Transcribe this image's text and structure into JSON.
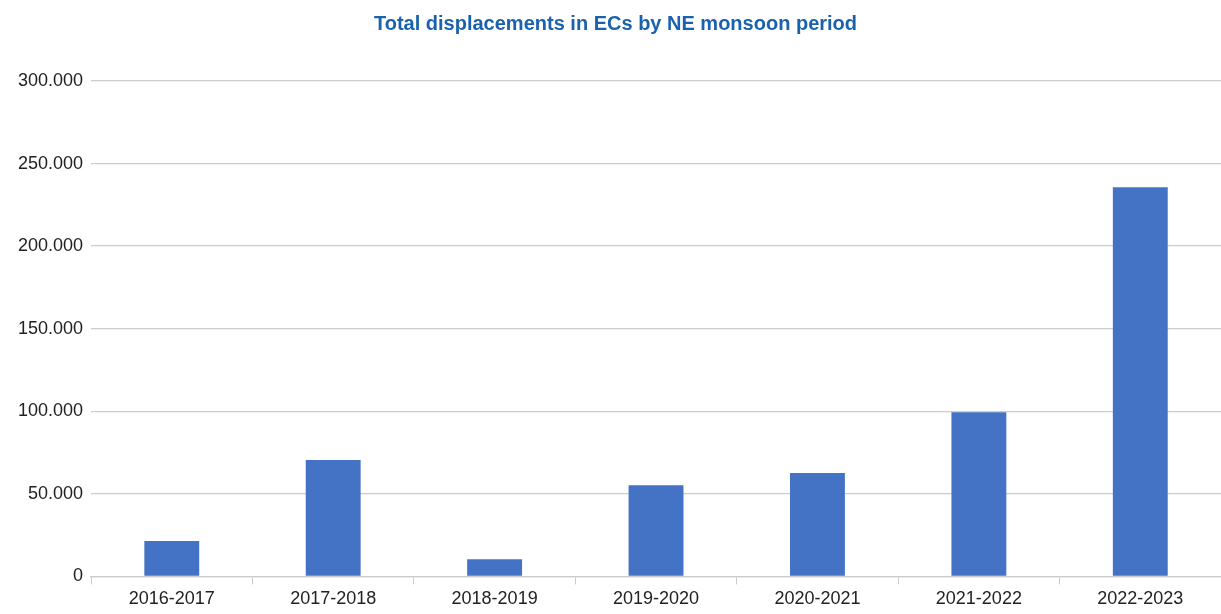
{
  "chart_data": {
    "type": "bar",
    "title": "Total displacements in ECs by NE monsoon period",
    "categories": [
      "2016-2017",
      "2017-2018",
      "2018-2019",
      "2019-2020",
      "2020-2021",
      "2021-2022",
      "2022-2023"
    ],
    "values": [
      21500,
      70500,
      10400,
      55200,
      62600,
      99400,
      235600
    ],
    "color": "#4472c4",
    "ylim": [
      0,
      300000
    ],
    "yticks": [
      0,
      {
        "value": 50000,
        "label": "50.000"
      },
      {
        "value": 100000,
        "label": "100.000"
      },
      {
        "value": 150000,
        "label": "150.000"
      },
      {
        "value": 200000,
        "label": "200.000"
      },
      {
        "value": 250000,
        "label": "250.000"
      },
      {
        "value": 300000,
        "label": "300.000"
      }
    ],
    "grid": "y"
  }
}
